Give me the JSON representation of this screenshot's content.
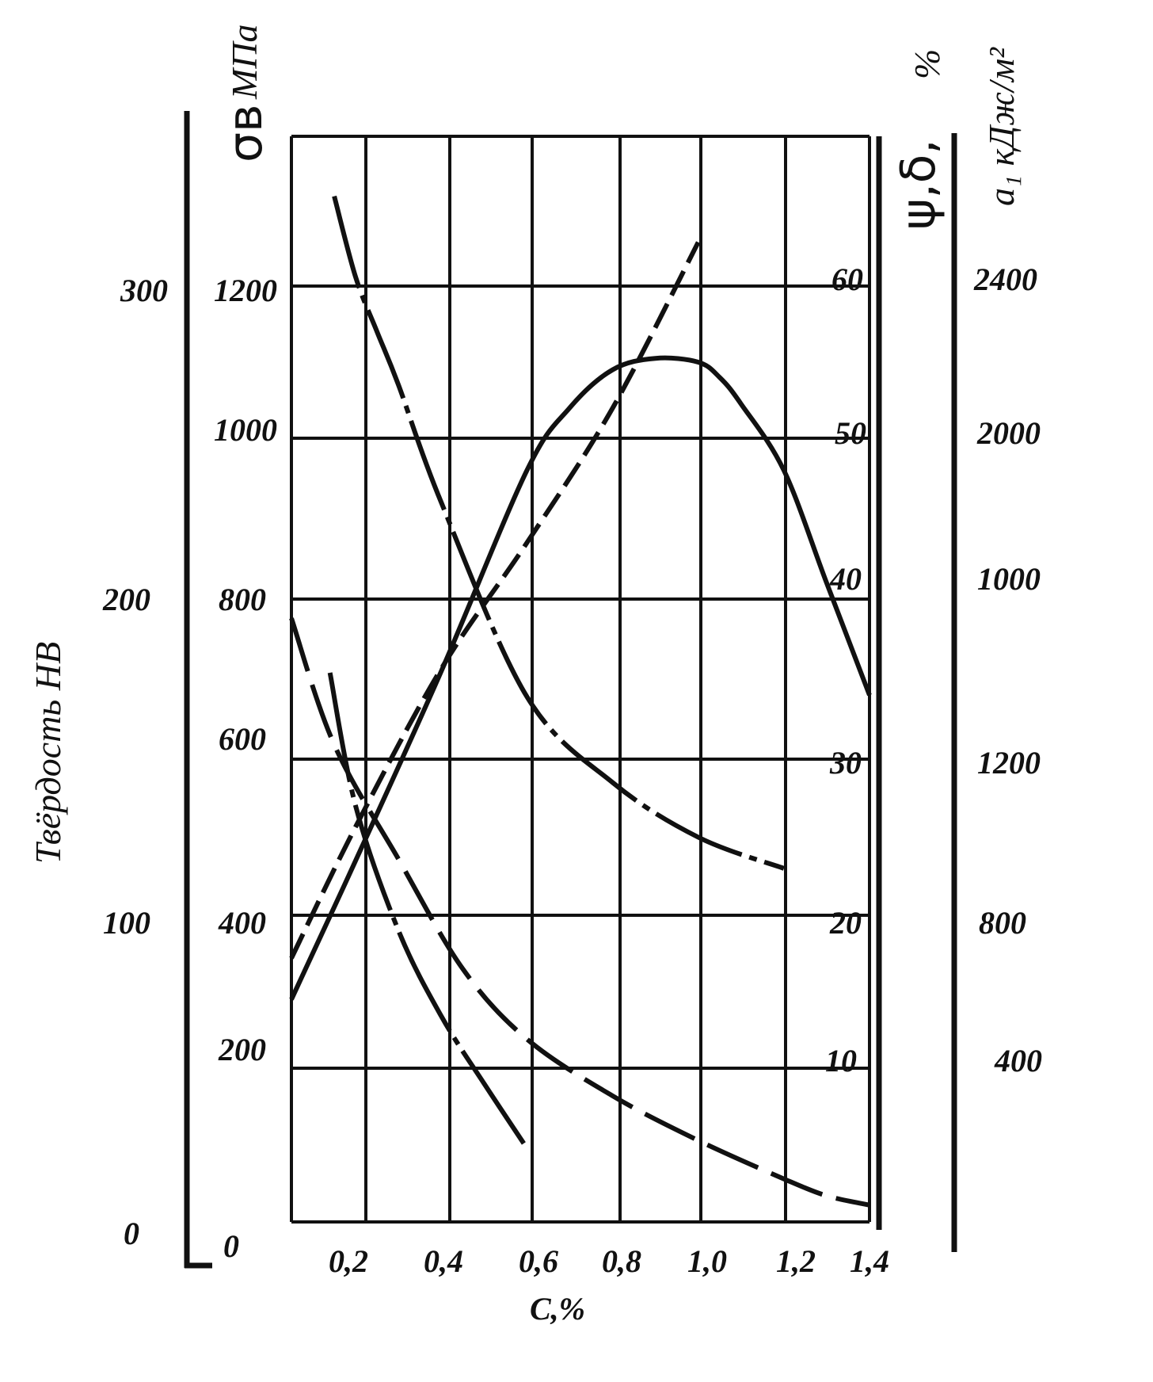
{
  "chart_data": {
    "type": "line",
    "x_axis": {
      "label": "C,%",
      "ticks": [
        "0,2",
        "0,4",
        "0,6",
        "0,8",
        "1,0",
        "1,2",
        "1,4"
      ],
      "range": [
        0.05,
        1.4
      ]
    },
    "axes": {
      "hb": {
        "label": "Твёрдость НВ",
        "ticks": [
          "0",
          "100",
          "200",
          "300"
        ]
      },
      "sigma": {
        "label_symbol": "σв",
        "label_unit": "МПа",
        "ticks": [
          "0",
          "200",
          "400",
          "600",
          "800",
          "1000",
          "1200"
        ]
      },
      "psi_delta": {
        "label_symbol": "ψ,δ,",
        "label_unit": "%",
        "ticks": [
          "10",
          "20",
          "30",
          "40",
          "50",
          "60"
        ]
      },
      "a1": {
        "label": "a₁ кДж/м²",
        "ticks": [
          "400",
          "800",
          "1200",
          "1000",
          "2000",
          "2400"
        ]
      }
    },
    "grid": true,
    "series": [
      {
        "style": "solid",
        "axis": "sigma",
        "x": [
          0.05,
          0.2,
          0.4,
          0.6,
          0.7,
          0.8,
          0.9,
          1.0,
          1.05,
          1.1,
          1.2,
          1.3,
          1.4
        ],
        "y": [
          290,
          470,
          710,
          960,
          1040,
          1090,
          1105,
          1100,
          1080,
          1045,
          960,
          820,
          680
        ]
      },
      {
        "style": "dash",
        "axis": "hb",
        "x": [
          0.05,
          0.2,
          0.4,
          0.6,
          0.8,
          1.0
        ],
        "y": [
          86,
          128,
          178,
          218,
          261,
          314
        ]
      },
      {
        "style": "dash-dot",
        "axis": "psi_delta",
        "x": [
          0.15,
          0.2,
          0.25,
          0.3,
          0.4,
          0.6,
          0.8,
          1.0,
          1.2
        ],
        "y": [
          66,
          60.6,
          57,
          53.5,
          46,
          33.9,
          28.5,
          25,
          23
        ]
      },
      {
        "style": "long-dash",
        "axis": "psi_delta",
        "x": [
          0.05,
          0.15,
          0.3,
          0.45,
          0.6,
          0.8,
          1.0,
          1.2,
          1.3,
          1.4
        ],
        "y": [
          38.8,
          30.9,
          23.6,
          16.5,
          11.9,
          8.2,
          5.3,
          2.8,
          1.7,
          1.1
        ]
      },
      {
        "style": "dash-dot-solid",
        "axis": "psi_delta",
        "x": [
          0.14,
          0.2,
          0.3,
          0.4,
          0.5,
          0.6
        ],
        "y": [
          35.4,
          27,
          19,
          13.4,
          9,
          4.8
        ]
      }
    ]
  }
}
